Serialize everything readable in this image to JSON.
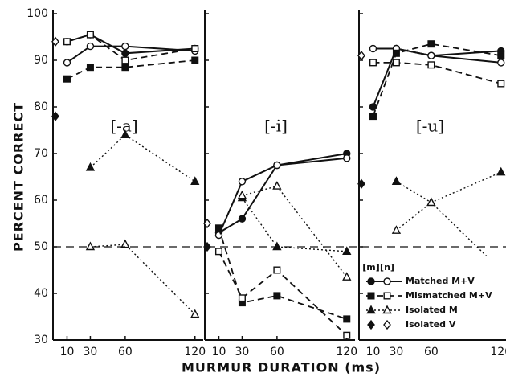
{
  "y_label": "PERCENT CORRECT",
  "x_label": "MURMUR DURATION (ms)",
  "chance_line": 50,
  "legend": {
    "columns": [
      "[m]",
      "[n]"
    ],
    "entries": [
      "Matched M+V",
      "Mismatched M+V",
      "Isolated M",
      "Isolated V"
    ]
  },
  "chart_data": [
    {
      "type": "line",
      "title": "[-a]",
      "xlim": [
        0,
        125
      ],
      "xticks": [
        10,
        30,
        60,
        120
      ],
      "ylim": [
        30,
        100
      ],
      "yticks": [
        30,
        40,
        50,
        60,
        70,
        80,
        90,
        100
      ],
      "series": [
        {
          "entry": 0,
          "marker": "filled",
          "shape": "circle",
          "dash": "solid",
          "color": "#111",
          "x": [
            10,
            30,
            60,
            120
          ],
          "values": [
            94,
            95.5,
            91.5,
            92.5
          ]
        },
        {
          "entry": 0,
          "marker": "open",
          "shape": "circle",
          "dash": "solid",
          "color": "#111",
          "x": [
            10,
            30,
            60,
            120
          ],
          "values": [
            89.5,
            93,
            93,
            92
          ]
        },
        {
          "entry": 1,
          "marker": "filled",
          "shape": "square",
          "dash": "dashed",
          "color": "#111",
          "x": [
            10,
            30,
            60,
            120
          ],
          "values": [
            86,
            88.5,
            88.5,
            90
          ]
        },
        {
          "entry": 1,
          "marker": "open",
          "shape": "square",
          "dash": "dashed",
          "color": "#111",
          "x": [
            10,
            30,
            60,
            120
          ],
          "values": [
            94,
            95.5,
            90,
            92.5
          ]
        },
        {
          "entry": 2,
          "marker": "filled",
          "shape": "triangle",
          "dash": "dotted",
          "color": "#111",
          "x": [
            30,
            60,
            120
          ],
          "values": [
            67,
            74,
            64
          ]
        },
        {
          "entry": 2,
          "marker": "open",
          "shape": "triangle",
          "dash": "dotted",
          "color": "#111",
          "x": [
            30,
            60,
            120
          ],
          "values": [
            50,
            50.5,
            35.5
          ]
        },
        {
          "entry": 3,
          "marker": "filled",
          "shape": "diamond",
          "dash": "none",
          "color": "#111",
          "x": [
            0
          ],
          "values": [
            78
          ]
        },
        {
          "entry": 3,
          "marker": "open",
          "shape": "diamond",
          "dash": "none",
          "color": "#111",
          "x": [
            0
          ],
          "values": [
            94
          ]
        }
      ]
    },
    {
      "type": "line",
      "title": "[-i]",
      "xlim": [
        0,
        125
      ],
      "xticks": [
        10,
        30,
        60,
        120
      ],
      "ylim": [
        30,
        100
      ],
      "yticks": [
        30,
        40,
        50,
        60,
        70,
        80,
        90,
        100
      ],
      "series": [
        {
          "entry": 0,
          "marker": "filled",
          "shape": "circle",
          "dash": "solid",
          "color": "#111",
          "x": [
            10,
            30,
            60,
            120
          ],
          "values": [
            53,
            56,
            67.5,
            70
          ]
        },
        {
          "entry": 0,
          "marker": "open",
          "shape": "circle",
          "dash": "solid",
          "color": "#111",
          "x": [
            10,
            30,
            60,
            120
          ],
          "values": [
            52.5,
            64,
            67.5,
            69
          ]
        },
        {
          "entry": 1,
          "marker": "filled",
          "shape": "square",
          "dash": "dashed",
          "color": "#111",
          "x": [
            10,
            30,
            60,
            120
          ],
          "values": [
            54,
            38,
            39.5,
            34.5
          ]
        },
        {
          "entry": 1,
          "marker": "open",
          "shape": "square",
          "dash": "dashed",
          "color": "#111",
          "x": [
            10,
            30,
            60,
            120
          ],
          "values": [
            49,
            39,
            45,
            31
          ]
        },
        {
          "entry": 2,
          "marker": "filled",
          "shape": "triangle",
          "dash": "dotted",
          "color": "#111",
          "x": [
            30,
            60,
            120
          ],
          "values": [
            60.5,
            50,
            49
          ]
        },
        {
          "entry": 2,
          "marker": "open",
          "shape": "triangle",
          "dash": "dotted",
          "color": "#111",
          "x": [
            30,
            60,
            120
          ],
          "values": [
            61,
            63,
            43.5
          ]
        },
        {
          "entry": 3,
          "marker": "filled",
          "shape": "diamond",
          "dash": "none",
          "color": "#111",
          "x": [
            0
          ],
          "values": [
            50
          ]
        },
        {
          "entry": 3,
          "marker": "open",
          "shape": "diamond",
          "dash": "none",
          "color": "#111",
          "x": [
            0
          ],
          "values": [
            55
          ]
        }
      ]
    },
    {
      "type": "line",
      "title": "[-u]",
      "xlim": [
        0,
        125
      ],
      "xticks": [
        10,
        30,
        60,
        120
      ],
      "ylim": [
        30,
        100
      ],
      "yticks": [
        30,
        40,
        50,
        60,
        70,
        80,
        90,
        100
      ],
      "series": [
        {
          "entry": 0,
          "marker": "filled",
          "shape": "circle",
          "dash": "solid",
          "color": "#111",
          "x": [
            10,
            30,
            60,
            120
          ],
          "values": [
            80,
            92.5,
            91,
            92
          ]
        },
        {
          "entry": 0,
          "marker": "open",
          "shape": "circle",
          "dash": "solid",
          "color": "#111",
          "x": [
            10,
            30,
            60,
            120
          ],
          "values": [
            92.5,
            92.5,
            91,
            89.5
          ]
        },
        {
          "entry": 1,
          "marker": "filled",
          "shape": "square",
          "dash": "dashed",
          "color": "#111",
          "x": [
            10,
            30,
            60,
            120
          ],
          "values": [
            78,
            91.5,
            93.5,
            91
          ]
        },
        {
          "entry": 1,
          "marker": "open",
          "shape": "square",
          "dash": "dashed",
          "color": "#111",
          "x": [
            10,
            30,
            60,
            120
          ],
          "values": [
            89.5,
            89.5,
            89,
            85
          ]
        },
        {
          "entry": 2,
          "marker": "filled",
          "shape": "triangle",
          "dash": "dotted",
          "color": "#111",
          "x": [
            30,
            60,
            120
          ],
          "values": [
            64,
            59.5,
            66
          ]
        },
        {
          "entry": 2,
          "marker": "open",
          "shape": "triangle",
          "dash": "dotted",
          "color": "#111",
          "x": [
            30,
            60,
            120
          ],
          "values": [
            53.5,
            59.5,
            45
          ]
        },
        {
          "entry": 3,
          "marker": "filled",
          "shape": "diamond",
          "dash": "none",
          "color": "#111",
          "x": [
            0
          ],
          "values": [
            63.5
          ]
        },
        {
          "entry": 3,
          "marker": "open",
          "shape": "diamond",
          "dash": "none",
          "color": "#111",
          "x": [
            0
          ],
          "values": [
            91
          ]
        }
      ]
    }
  ]
}
